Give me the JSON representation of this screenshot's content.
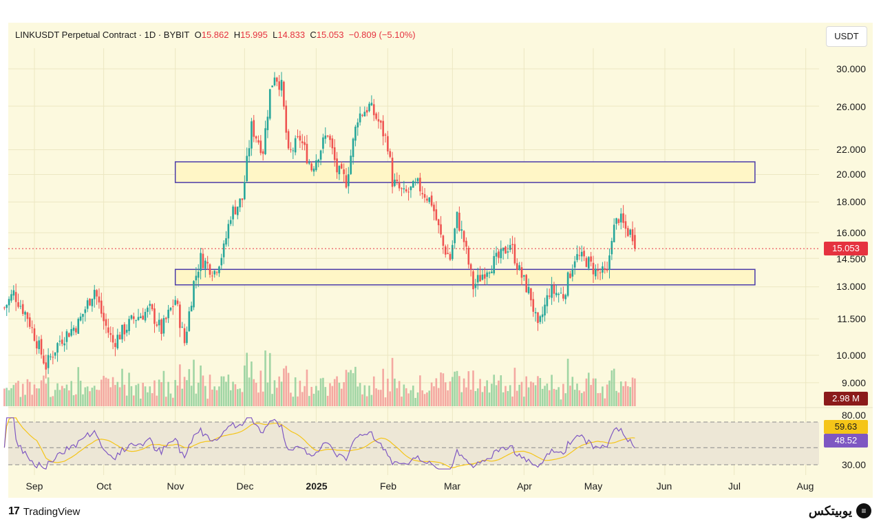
{
  "legend": {
    "symbol": "LINKUSDT Perpetual Contract · 1D · BYBIT",
    "o_label": "O",
    "o": "15.862",
    "h_label": "H",
    "h": "15.995",
    "l_label": "L",
    "l": "14.833",
    "c_label": "C",
    "c": "15.053",
    "change": "−0.809 (−5.10%)"
  },
  "unit_button": "USDT",
  "price_axis": [
    "30.000",
    "26.000",
    "22.000",
    "20.000",
    "18.000",
    "16.000",
    "14.500",
    "13.000",
    "11.500",
    "10.000",
    "9.000"
  ],
  "rsi_axis": [
    "80.00",
    "30.00"
  ],
  "badges": {
    "last_price": "15.053",
    "volume": "2.98 M",
    "rsi_ma": "59.63",
    "rsi": "48.52"
  },
  "colors": {
    "up": "#26a69a",
    "down": "#ef5350",
    "zone_border": "#4a3aa8",
    "rsi_line": "#7e57c2",
    "rsi_ma_line": "#f5c518",
    "last_price_line": "#e5323f"
  },
  "x_axis": [
    "Sep",
    "Oct",
    "Nov",
    "Dec",
    "2025",
    "Feb",
    "Mar",
    "Apr",
    "May",
    "Jun",
    "Jul",
    "Aug"
  ],
  "footer": {
    "left": "TradingView",
    "right": "یوبیتکس"
  },
  "chart_data": {
    "type": "candlestick",
    "symbol": "LINKUSDT",
    "timeframe": "1D",
    "y_scale": "log",
    "ylim": [
      8.5,
      32
    ],
    "last_close": 15.053,
    "rsi_period_levels": [
      30,
      80
    ],
    "rsi_mid": 50,
    "zones": [
      {
        "low": 19.4,
        "high": 21.0,
        "from": "2024-11-01",
        "to": "2025-07-10"
      },
      {
        "low": 13.1,
        "high": 13.9,
        "from": "2024-11-01",
        "to": "2025-07-10"
      }
    ],
    "price_path": [
      {
        "date": "2024-08-19",
        "close": 12.0
      },
      {
        "date": "2024-08-23",
        "close": 12.7
      },
      {
        "date": "2024-08-29",
        "close": 11.6
      },
      {
        "date": "2024-09-06",
        "close": 9.6
      },
      {
        "date": "2024-09-12",
        "close": 10.6
      },
      {
        "date": "2024-09-20",
        "close": 11.3
      },
      {
        "date": "2024-09-27",
        "close": 12.9
      },
      {
        "date": "2024-10-01",
        "close": 11.4
      },
      {
        "date": "2024-10-05",
        "close": 10.5
      },
      {
        "date": "2024-10-14",
        "close": 11.5
      },
      {
        "date": "2024-10-21",
        "close": 11.9
      },
      {
        "date": "2024-10-26",
        "close": 11.0
      },
      {
        "date": "2024-11-01",
        "close": 12.4
      },
      {
        "date": "2024-11-05",
        "close": 10.5
      },
      {
        "date": "2024-11-09",
        "close": 13.2
      },
      {
        "date": "2024-11-12",
        "close": 14.5
      },
      {
        "date": "2024-11-18",
        "close": 13.8
      },
      {
        "date": "2024-11-22",
        "close": 15.0
      },
      {
        "date": "2024-11-25",
        "close": 17.2
      },
      {
        "date": "2024-11-30",
        "close": 18.2
      },
      {
        "date": "2024-12-04",
        "close": 24.0
      },
      {
        "date": "2024-12-09",
        "close": 22.0
      },
      {
        "date": "2024-12-12",
        "close": 27.5
      },
      {
        "date": "2024-12-14",
        "close": 29.5
      },
      {
        "date": "2024-12-17",
        "close": 28.0
      },
      {
        "date": "2024-12-20",
        "close": 21.5
      },
      {
        "date": "2024-12-25",
        "close": 23.0
      },
      {
        "date": "2024-12-30",
        "close": 20.5
      },
      {
        "date": "2025-01-06",
        "close": 23.5
      },
      {
        "date": "2025-01-10",
        "close": 20.3
      },
      {
        "date": "2025-01-14",
        "close": 19.5
      },
      {
        "date": "2025-01-19",
        "close": 25.0
      },
      {
        "date": "2025-01-24",
        "close": 26.0
      },
      {
        "date": "2025-01-28",
        "close": 24.5
      },
      {
        "date": "2025-02-01",
        "close": 22.5
      },
      {
        "date": "2025-02-03",
        "close": 19.5
      },
      {
        "date": "2025-02-08",
        "close": 18.5
      },
      {
        "date": "2025-02-14",
        "close": 19.2
      },
      {
        "date": "2025-02-20",
        "close": 18.0
      },
      {
        "date": "2025-02-25",
        "close": 15.2
      },
      {
        "date": "2025-02-28",
        "close": 14.5
      },
      {
        "date": "2025-03-03",
        "close": 17.0
      },
      {
        "date": "2025-03-06",
        "close": 15.5
      },
      {
        "date": "2025-03-10",
        "close": 13.0
      },
      {
        "date": "2025-03-16",
        "close": 14.0
      },
      {
        "date": "2025-03-22",
        "close": 14.6
      },
      {
        "date": "2025-03-26",
        "close": 15.4
      },
      {
        "date": "2025-03-30",
        "close": 13.8
      },
      {
        "date": "2025-04-04",
        "close": 12.5
      },
      {
        "date": "2025-04-07",
        "close": 11.0
      },
      {
        "date": "2025-04-12",
        "close": 12.8
      },
      {
        "date": "2025-04-18",
        "close": 12.6
      },
      {
        "date": "2025-04-23",
        "close": 14.6
      },
      {
        "date": "2025-04-28",
        "close": 14.4
      },
      {
        "date": "2025-05-02",
        "close": 13.8
      },
      {
        "date": "2025-05-07",
        "close": 13.6
      },
      {
        "date": "2025-05-09",
        "close": 15.9
      },
      {
        "date": "2025-05-12",
        "close": 17.0
      },
      {
        "date": "2025-05-15",
        "close": 16.2
      },
      {
        "date": "2025-05-18",
        "close": 15.9
      },
      {
        "date": "2025-05-19",
        "close": 15.053
      }
    ]
  }
}
